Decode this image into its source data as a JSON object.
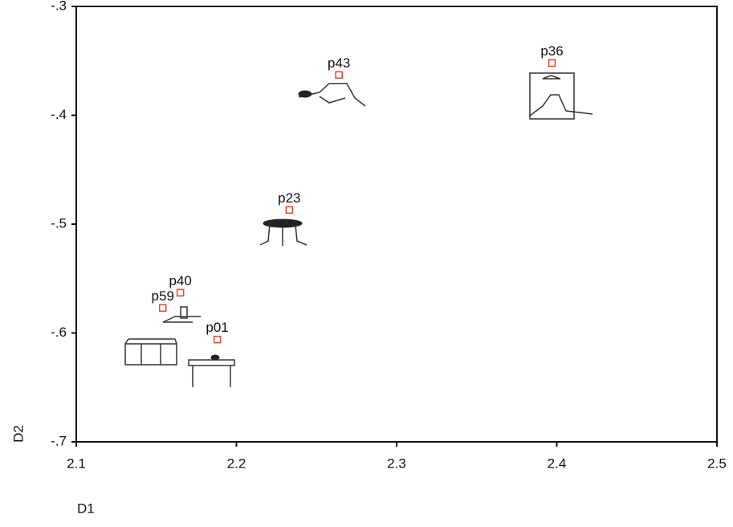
{
  "chart_data": {
    "type": "scatter",
    "xlabel": "D1",
    "ylabel": "D2",
    "labels": [
      "p43",
      "p36",
      "p23",
      "p40",
      "p59",
      "p01"
    ],
    "x": [
      2.264,
      2.397,
      2.233,
      2.165,
      2.154,
      2.188
    ],
    "values": [
      -0.363,
      -0.352,
      -0.487,
      -0.563,
      -0.577,
      -0.606
    ],
    "color": "#e8452c",
    "xlim": [
      2.1,
      2.5
    ],
    "xticks": [
      2.1,
      2.2,
      2.3,
      2.4,
      2.5
    ],
    "ylim": [
      -0.7,
      -0.3
    ],
    "yticks": [
      {
        "value": -0.7,
        "label": "-.7"
      },
      {
        "value": -0.6,
        "label": "-.6"
      },
      {
        "value": -0.5,
        "label": "-.5"
      },
      {
        "value": -0.4,
        "label": "-.4"
      },
      {
        "value": -0.3,
        "label": "-.3"
      }
    ]
  }
}
